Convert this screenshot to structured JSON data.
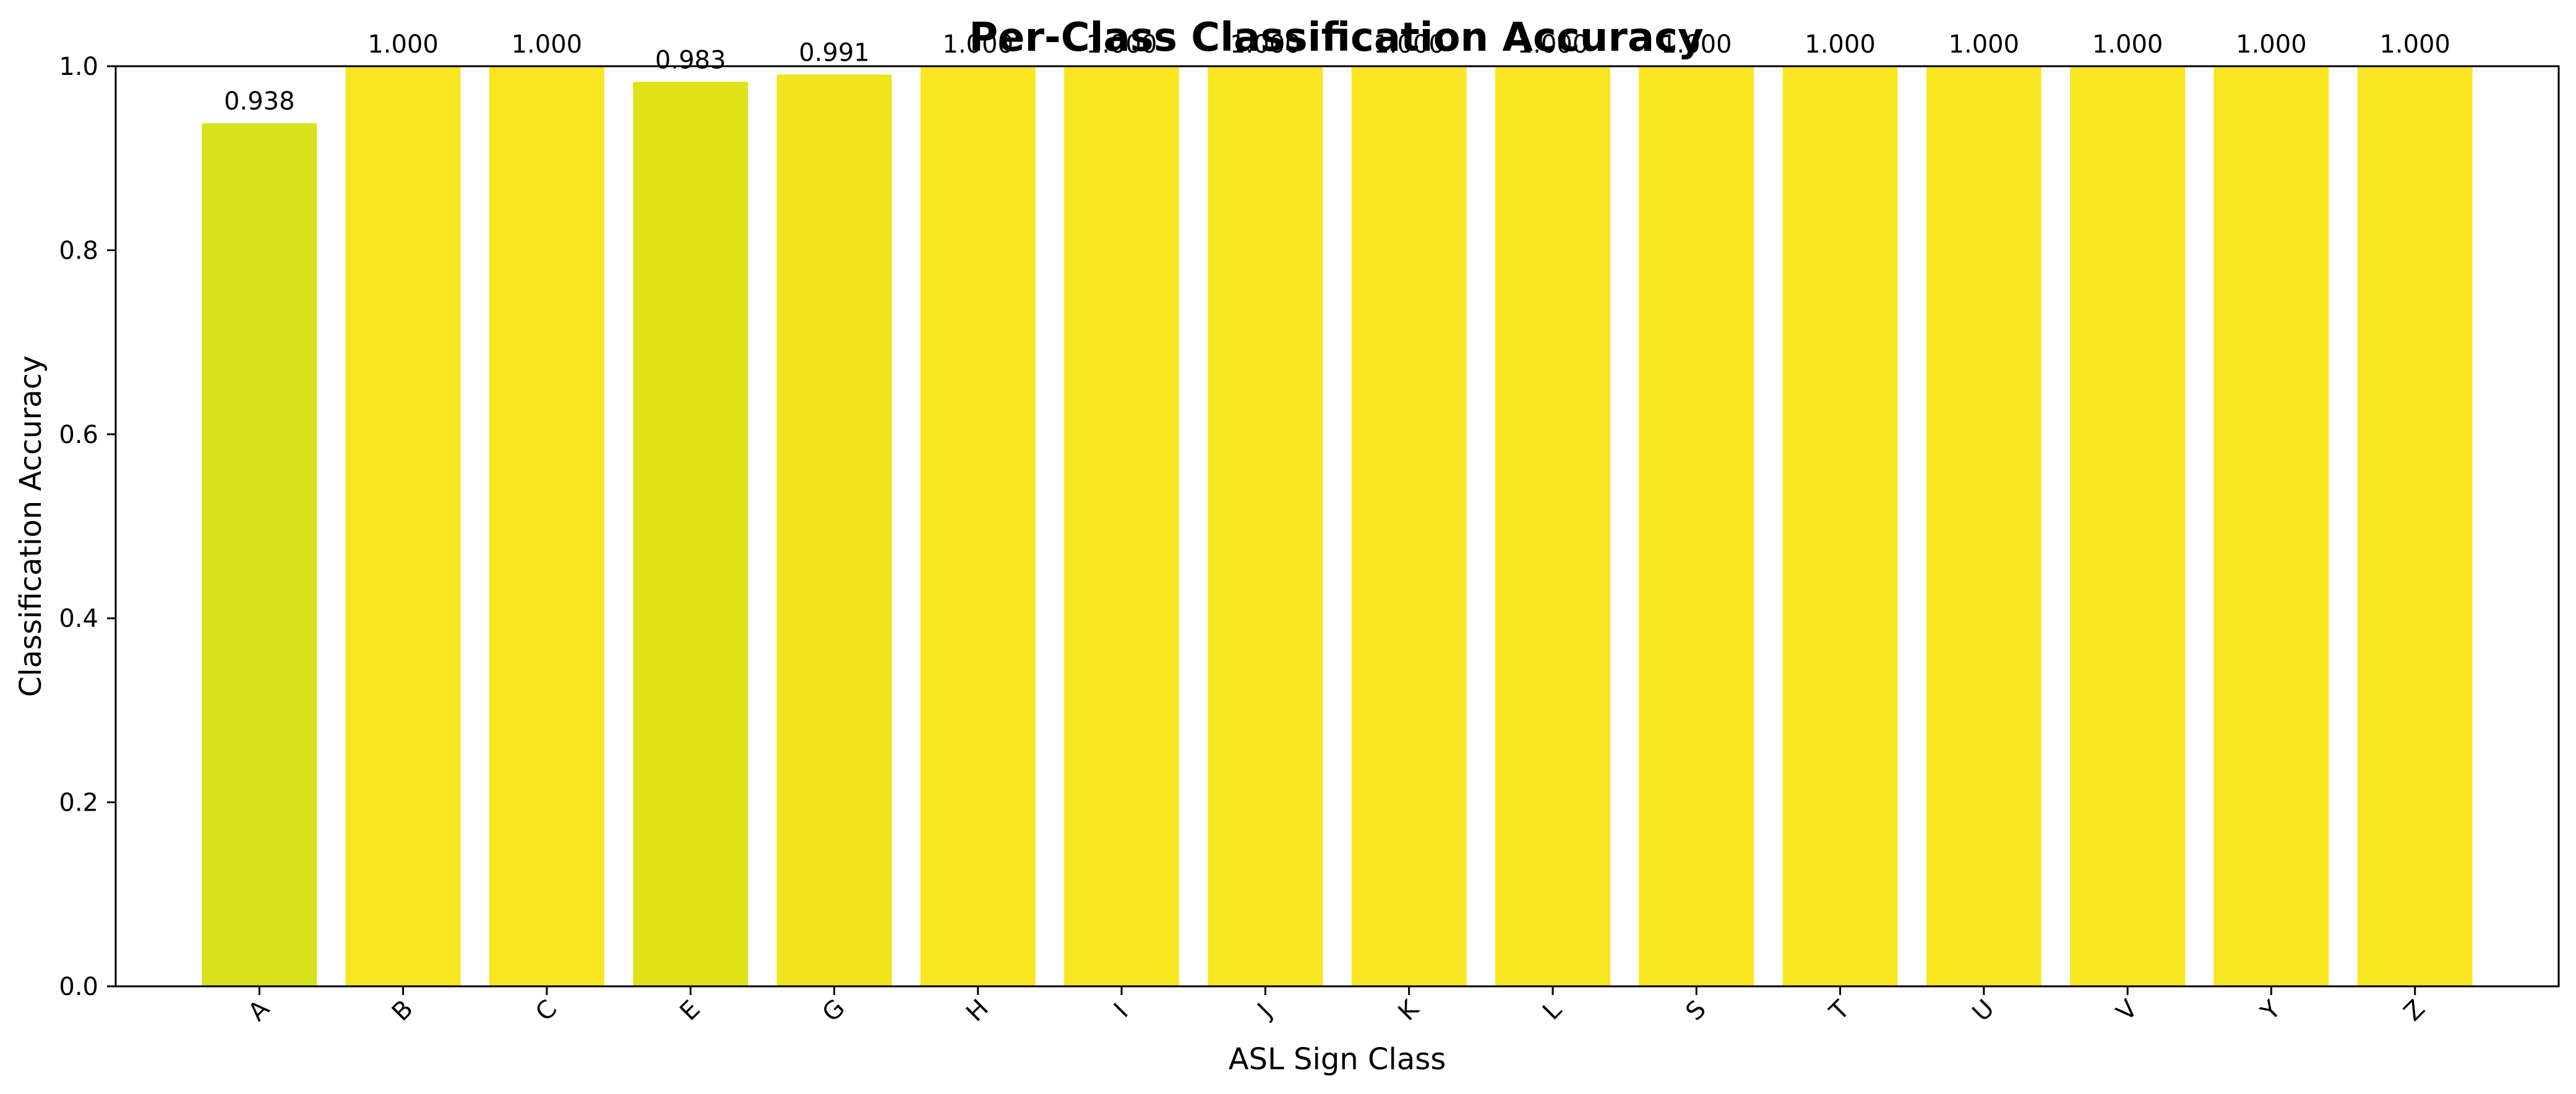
{
  "chart_data": {
    "type": "bar",
    "title": "Per-Class Classification Accuracy",
    "xlabel": "ASL Sign Class",
    "ylabel": "Classification Accuracy",
    "categories": [
      "A",
      "B",
      "C",
      "E",
      "G",
      "H",
      "I",
      "J",
      "K",
      "L",
      "S",
      "T",
      "U",
      "V",
      "Y",
      "Z"
    ],
    "values": [
      0.938,
      1.0,
      1.0,
      0.983,
      0.991,
      1.0,
      1.0,
      1.0,
      1.0,
      1.0,
      1.0,
      1.0,
      1.0,
      1.0,
      1.0,
      1.0
    ],
    "data_labels": [
      "0.938",
      "1.000",
      "1.000",
      "0.983",
      "0.991",
      "1.000",
      "1.000",
      "1.000",
      "1.000",
      "1.000",
      "1.000",
      "1.000",
      "1.000",
      "1.000",
      "1.000",
      "1.000"
    ],
    "bar_colors": [
      "#d5e21a",
      "#f8e621",
      "#f8e621",
      "#dfe318",
      "#f1e51d",
      "#f8e621",
      "#f8e621",
      "#f8e621",
      "#f8e621",
      "#f8e621",
      "#f8e621",
      "#f8e621",
      "#f8e621",
      "#f8e621",
      "#f8e621",
      "#f8e621"
    ],
    "ylim": [
      0,
      1
    ],
    "yticks": [
      0.0,
      0.2,
      0.4,
      0.6,
      0.8,
      1.0
    ],
    "ytick_labels": [
      "0.0",
      "0.2",
      "0.4",
      "0.6",
      "0.8",
      "1.0"
    ],
    "grid": false,
    "legend": "none"
  }
}
